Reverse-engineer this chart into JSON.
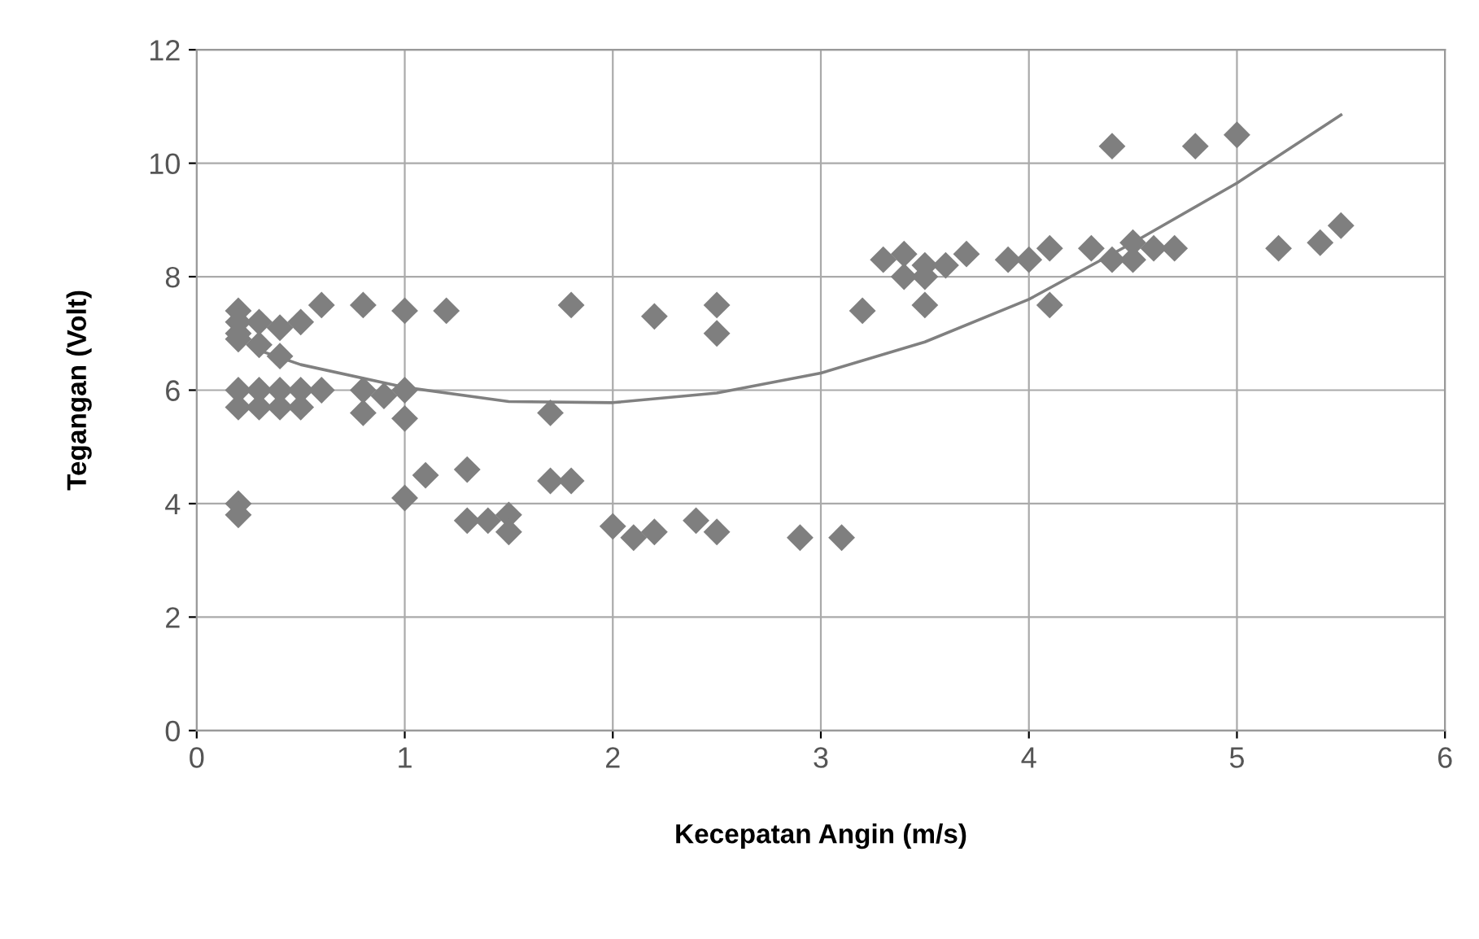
{
  "chart_data": {
    "type": "scatter",
    "xlabel": "Kecepatan Angin (m/s)",
    "ylabel": "Tegangan (Volt)",
    "xlim": [
      0,
      6
    ],
    "xticks": [
      0,
      1,
      2,
      3,
      4,
      5,
      6
    ],
    "ylim": [
      0,
      12
    ],
    "yticks": [
      0,
      2,
      4,
      6,
      8,
      10,
      12
    ],
    "grid": true,
    "marker": "diamond",
    "series": [
      {
        "color": "#7f7f7f",
        "x": [
          0.2,
          0.2,
          0.2,
          0.2,
          0.2,
          0.2,
          0.2,
          0.2,
          0.3,
          0.3,
          0.3,
          0.3,
          0.4,
          0.4,
          0.4,
          0.4,
          0.5,
          0.5,
          0.5,
          0.6,
          0.6,
          0.8,
          0.8,
          0.8,
          0.9,
          1.0,
          1.0,
          1.0,
          1.0,
          1.1,
          1.2,
          1.3,
          1.3,
          1.4,
          1.5,
          1.5,
          1.7,
          1.7,
          1.8,
          1.8,
          2.0,
          2.1,
          2.2,
          2.2,
          2.4,
          2.5,
          2.5,
          2.5,
          2.9,
          3.1,
          3.2,
          3.3,
          3.4,
          3.4,
          3.5,
          3.5,
          3.5,
          3.6,
          3.7,
          3.9,
          4.0,
          4.1,
          4.1,
          4.3,
          4.4,
          4.4,
          4.5,
          4.5,
          4.6,
          4.7,
          4.8,
          5.0,
          5.2,
          5.4,
          5.5
        ],
        "values": [
          7.4,
          7.2,
          7.0,
          6.9,
          6.0,
          5.7,
          4.0,
          3.8,
          7.2,
          6.8,
          6.0,
          5.7,
          7.1,
          6.6,
          6.0,
          5.7,
          7.2,
          6.0,
          5.7,
          7.5,
          6.0,
          7.5,
          6.0,
          5.6,
          5.9,
          7.4,
          6.0,
          5.5,
          4.1,
          4.5,
          7.4,
          4.6,
          3.7,
          3.7,
          3.8,
          3.5,
          5.6,
          4.4,
          7.5,
          4.4,
          3.6,
          3.4,
          7.3,
          3.5,
          3.7,
          7.5,
          7.0,
          3.5,
          3.4,
          3.4,
          7.4,
          8.3,
          8.4,
          8.0,
          8.2,
          8.0,
          7.5,
          8.2,
          8.4,
          8.3,
          8.3,
          8.5,
          7.5,
          8.5,
          10.3,
          8.3,
          8.6,
          8.3,
          8.5,
          8.5,
          10.3,
          10.5,
          8.5,
          8.6,
          8.9
        ]
      },
      {
        "type": "line",
        "color": "#808080",
        "marker": "none",
        "x": [
          0.3,
          0.5,
          1.0,
          1.5,
          2.0,
          2.5,
          3.0,
          3.5,
          4.0,
          4.5,
          5.0,
          5.5
        ],
        "values": [
          6.7,
          6.45,
          6.05,
          5.8,
          5.78,
          5.95,
          6.3,
          6.85,
          7.6,
          8.6,
          9.65,
          10.85
        ]
      }
    ]
  }
}
